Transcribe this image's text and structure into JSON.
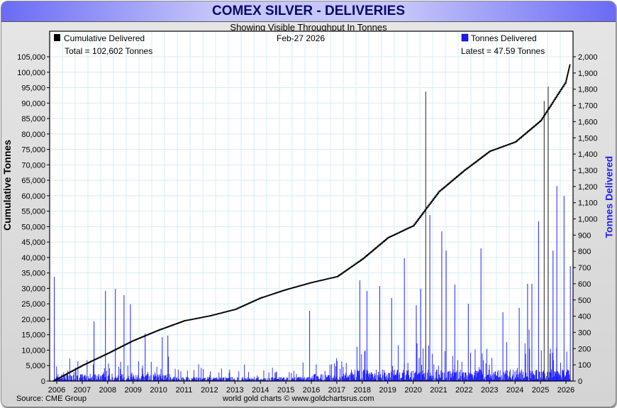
{
  "title": "COMEX SILVER - DELIVERIES",
  "subtitle": "Showing Visible Throughput In Tonnes",
  "date": "Feb-27  2026",
  "footer": {
    "source": "Source: CME Group",
    "credit": "world gold charts © www.goldchartsrus.com"
  },
  "colors": {
    "cumulative": "#000000",
    "deliveries": "#2020ff",
    "grid": "#d4eef4",
    "title": "#0a0a6a"
  },
  "chart_data": {
    "type": "bar+line",
    "title": "COMEX SILVER - DELIVERIES",
    "legend": {
      "cumulative": "Cumulative Delivered",
      "cumulative_total": "Total = 102,602 Tonnes",
      "deliveries": "Tonnes Delivered",
      "deliveries_latest": "Latest = 47.59 Tonnes"
    },
    "ylabel_left": "Cumulative Tonnes",
    "ylabel_right": "Tonnes Delivered",
    "ylim_left": [
      0,
      105000
    ],
    "ylim_right": [
      0,
      2000
    ],
    "xlim": [
      2005.85,
      2026.2
    ],
    "x_ticks": [
      "2006",
      "2007",
      "2008",
      "2009",
      "2010",
      "2011",
      "2012",
      "2013",
      "2014",
      "2015",
      "2016",
      "2017",
      "2018",
      "2019",
      "2020",
      "2021",
      "2022",
      "2023",
      "2024",
      "2025",
      "2026"
    ],
    "y_left_ticks": [
      "0",
      "5,000",
      "10,000",
      "15,000",
      "20,000",
      "25,000",
      "30,000",
      "35,000",
      "40,000",
      "45,000",
      "50,000",
      "55,000",
      "60,000",
      "65,000",
      "70,000",
      "75,000",
      "80,000",
      "85,000",
      "90,000",
      "95,000",
      "100,000",
      "105,000"
    ],
    "y_right_ticks": [
      "0",
      "100",
      "200",
      "300",
      "400",
      "500",
      "600",
      "700",
      "800",
      "900",
      "1,000",
      "1,100",
      "1,200",
      "1,300",
      "1,400",
      "1,500",
      "1,600",
      "1,700",
      "1,800",
      "1,900",
      "2,000"
    ],
    "cumulative": {
      "name": "Cumulative Delivered",
      "x": [
        2005.85,
        2007,
        2008,
        2009,
        2010,
        2011,
        2012,
        2013,
        2014,
        2015,
        2016,
        2017,
        2018,
        2019,
        2020,
        2021,
        2022,
        2023,
        2024,
        2025,
        2026,
        2026.16
      ],
      "values": [
        0,
        5050,
        8960,
        13100,
        16500,
        19500,
        21100,
        23200,
        26900,
        29600,
        31900,
        33800,
        39500,
        46400,
        50300,
        61300,
        68200,
        74400,
        77400,
        84300,
        97000,
        102602
      ]
    },
    "deliveries_spikes": {
      "name": "Tonnes Delivered",
      "x": [
        2005.89,
        2007.45,
        2007.9,
        2008.29,
        2008.63,
        2008.88,
        2009.46,
        2010.13,
        2010.35,
        2015.92,
        2017.89,
        2018.17,
        2018.67,
        2019.14,
        2019.64,
        2020.11,
        2020.28,
        2020.48,
        2020.64,
        2021.11,
        2021.28,
        2021.62,
        2022.15,
        2022.65,
        2023.51,
        2024.15,
        2024.48,
        2024.65,
        2024.91,
        2025.13,
        2025.29,
        2025.48,
        2025.63,
        2025.91,
        2026.16
      ],
      "values": [
        643,
        368,
        556,
        569,
        530,
        473,
        293,
        271,
        280,
        433,
        621,
        556,
        586,
        512,
        757,
        468,
        569,
        1785,
        1024,
        923,
        805,
        595,
        477,
        818,
        424,
        451,
        600,
        600,
        985,
        1728,
        1816,
        805,
        1203,
        1142,
        709
      ]
    },
    "latest": 47.59
  }
}
